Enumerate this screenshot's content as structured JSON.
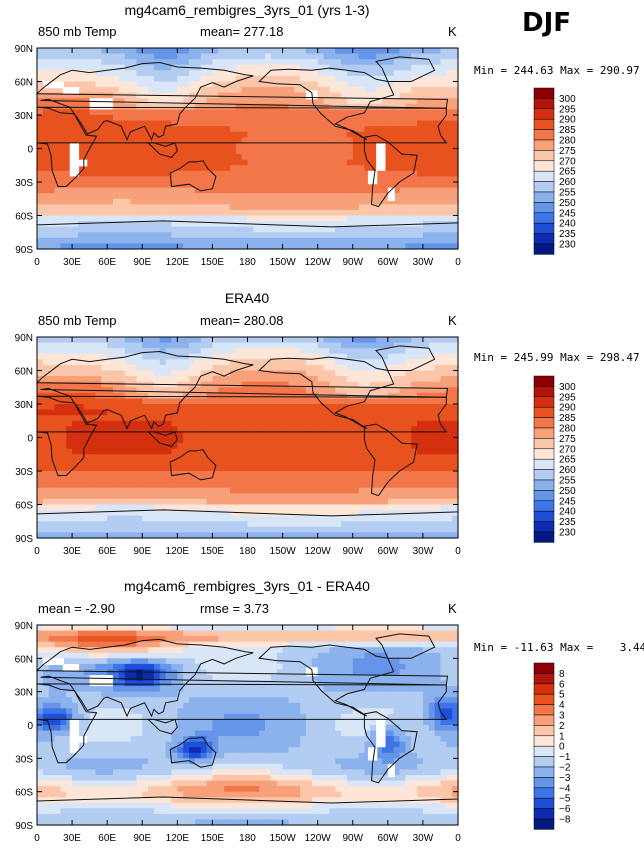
{
  "season": "DJF",
  "chart_data": [
    {
      "type": "heatmap",
      "title": "mg4cam6_rembigres_3yrs_01 (yrs 1-3)",
      "left_label": "850 mb Temp",
      "center_label": "mean= 277.18",
      "right_label": "K",
      "min_max": "Min = 244.63 Max = 290.97",
      "x_ticks": [
        "0",
        "30E",
        "60E",
        "90E",
        "120E",
        "150E",
        "180",
        "150W",
        "120W",
        "90W",
        "60W",
        "30W",
        "0"
      ],
      "y_ticks": [
        "90N",
        "60N",
        "30N",
        "0",
        "30S",
        "60S",
        "90S"
      ],
      "colorbar": {
        "levels": [
          "300",
          "295",
          "290",
          "285",
          "280",
          "275",
          "270",
          "265",
          "260",
          "255",
          "250",
          "245",
          "240",
          "235",
          "230"
        ],
        "colors": [
          "#8b0000",
          "#b0150c",
          "#d4300f",
          "#e8521f",
          "#f2764a",
          "#f7a07a",
          "#fbc6a9",
          "#fde6d7",
          "#d9e6f8",
          "#b3cdf2",
          "#8cb2ed",
          "#6595e9",
          "#3d74e6",
          "#1f4fd8",
          "#0d2bb0",
          "#001a80"
        ]
      }
    },
    {
      "type": "heatmap",
      "title": "ERA40",
      "left_label": "850 mb Temp",
      "center_label": "mean= 280.08",
      "right_label": "K",
      "min_max": "Min = 245.99 Max = 298.47",
      "x_ticks": [
        "0",
        "30E",
        "60E",
        "90E",
        "120E",
        "150E",
        "180",
        "150W",
        "120W",
        "90W",
        "60W",
        "30W",
        "0"
      ],
      "y_ticks": [
        "90N",
        "60N",
        "30N",
        "0",
        "30S",
        "60S",
        "90S"
      ],
      "colorbar": {
        "levels": [
          "300",
          "295",
          "290",
          "285",
          "280",
          "275",
          "270",
          "265",
          "260",
          "255",
          "250",
          "245",
          "240",
          "235",
          "230"
        ],
        "colors": [
          "#8b0000",
          "#b0150c",
          "#d4300f",
          "#e8521f",
          "#f2764a",
          "#f7a07a",
          "#fbc6a9",
          "#fde6d7",
          "#d9e6f8",
          "#b3cdf2",
          "#8cb2ed",
          "#6595e9",
          "#3d74e6",
          "#1f4fd8",
          "#0d2bb0",
          "#001a80"
        ]
      }
    },
    {
      "type": "heatmap",
      "title": "mg4cam6_rembigres_3yrs_01 - ERA40",
      "left_label": "mean =  -2.90",
      "center_label": "rmse =    3.73",
      "right_label": "K",
      "min_max": "Min = -11.63 Max =    3.44",
      "x_ticks": [
        "0",
        "30E",
        "60E",
        "90E",
        "120E",
        "150E",
        "180",
        "150W",
        "120W",
        "90W",
        "60W",
        "30W",
        "0"
      ],
      "y_ticks": [
        "90N",
        "60N",
        "30N",
        "0",
        "30S",
        "60S",
        "90S"
      ],
      "colorbar": {
        "levels": [
          "8",
          "6",
          "5",
          "4",
          "3",
          "2",
          "1",
          "0",
          "−1",
          "−2",
          "−3",
          "−4",
          "−5",
          "−6",
          "−8"
        ],
        "colors": [
          "#8b0000",
          "#b0150c",
          "#d4300f",
          "#e8521f",
          "#f2764a",
          "#f7a07a",
          "#fbc6a9",
          "#fde6d7",
          "#d9e6f8",
          "#b3cdf2",
          "#8cb2ed",
          "#6595e9",
          "#3d74e6",
          "#1f4fd8",
          "#0d2bb0",
          "#001a80"
        ]
      }
    }
  ]
}
